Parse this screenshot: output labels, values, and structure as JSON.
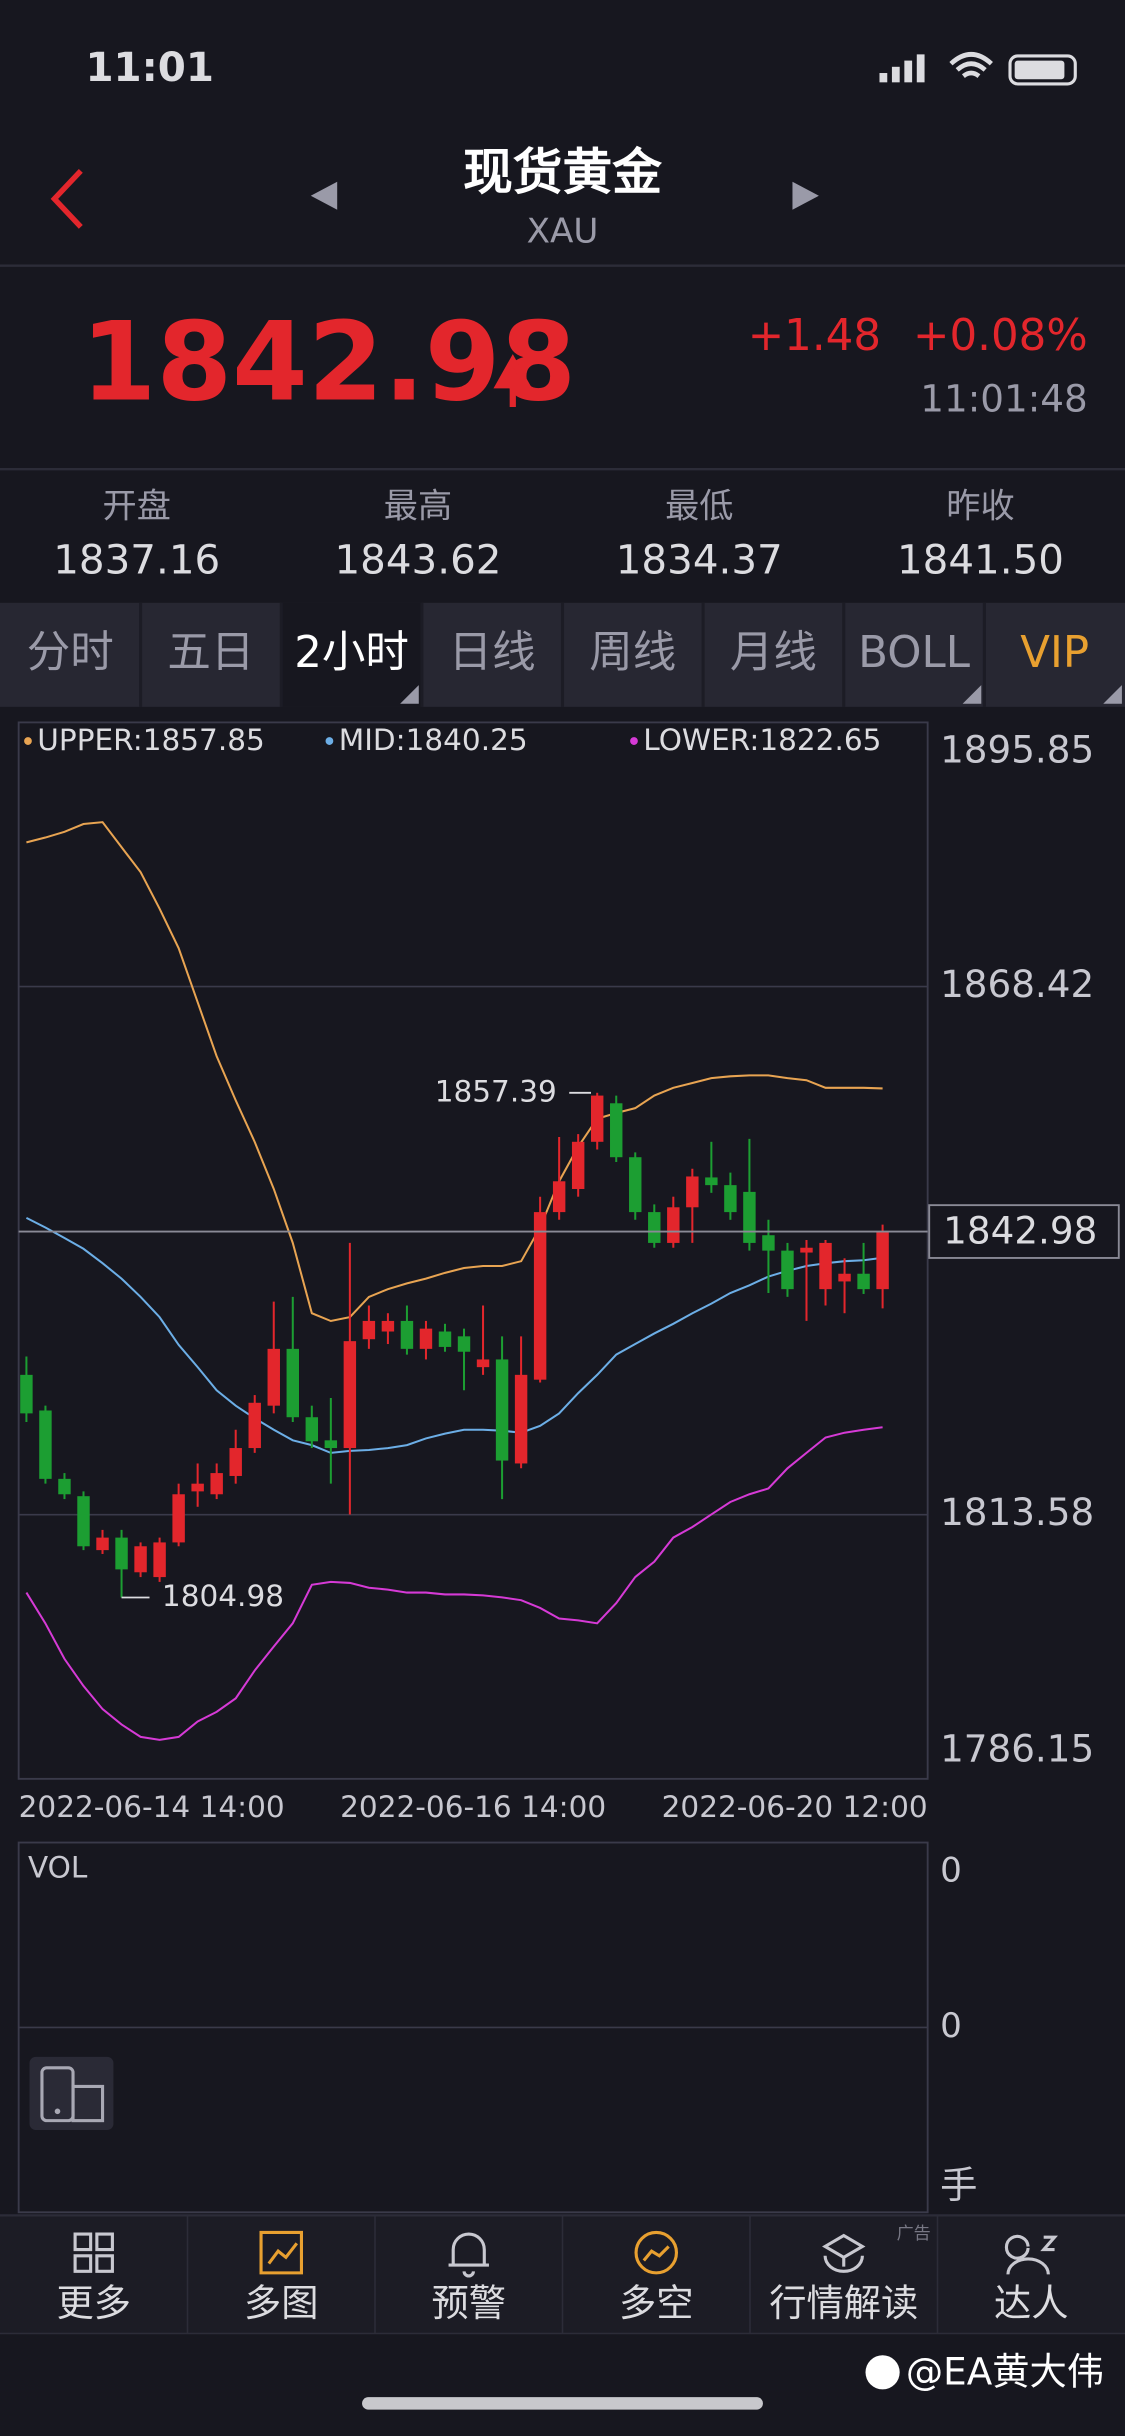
{
  "status_bar": {
    "time": "11:01"
  },
  "header": {
    "title": "现货黄金",
    "subtitle": "XAU"
  },
  "quote": {
    "price": "1842.98",
    "change": "+1.48",
    "change_pct": "+0.08%",
    "time": "11:01:48"
  },
  "stats": [
    {
      "label": "开盘",
      "value": "1837.16"
    },
    {
      "label": "最高",
      "value": "1843.62"
    },
    {
      "label": "最低",
      "value": "1834.37"
    },
    {
      "label": "昨收",
      "value": "1841.50"
    }
  ],
  "tabs": [
    "分时",
    "五日",
    "2小时",
    "日线",
    "周线",
    "月线",
    "BOLL",
    "VIP"
  ],
  "active_tab": 2,
  "chart": {
    "type": "candlestick",
    "ylim": [
      1786.15,
      1895.85
    ],
    "yticks": [
      1895.85,
      1868.42,
      1813.58,
      1786.15
    ],
    "up_color": "#e3262c",
    "down_color": "#1c9e32",
    "x_labels": [
      "2022-06-14 14:00",
      "2022-06-16 14:00",
      "2022-06-20 12:00"
    ],
    "candles": [
      {
        "o": 1828.1,
        "h": 1830.0,
        "l": 1823.2,
        "c": 1824.1
      },
      {
        "o": 1824.4,
        "h": 1824.9,
        "l": 1816.8,
        "c": 1817.3
      },
      {
        "o": 1817.3,
        "h": 1817.9,
        "l": 1815.2,
        "c": 1815.7
      },
      {
        "o": 1815.5,
        "h": 1816.0,
        "l": 1809.9,
        "c": 1810.3
      },
      {
        "o": 1809.9,
        "h": 1812.0,
        "l": 1809.5,
        "c": 1811.2
      },
      {
        "o": 1811.2,
        "h": 1812.0,
        "l": 1804.98,
        "c": 1807.9
      },
      {
        "o": 1807.6,
        "h": 1810.7,
        "l": 1807.1,
        "c": 1810.3
      },
      {
        "o": 1807.1,
        "h": 1811.2,
        "l": 1806.6,
        "c": 1810.7
      },
      {
        "o": 1810.7,
        "h": 1816.8,
        "l": 1810.3,
        "c": 1815.7
      },
      {
        "o": 1816.0,
        "h": 1818.9,
        "l": 1814.4,
        "c": 1816.8
      },
      {
        "o": 1815.7,
        "h": 1818.9,
        "l": 1815.2,
        "c": 1817.9
      },
      {
        "o": 1817.6,
        "h": 1822.4,
        "l": 1816.8,
        "c": 1820.5
      },
      {
        "o": 1820.5,
        "h": 1826.0,
        "l": 1820.0,
        "c": 1825.2
      },
      {
        "o": 1824.9,
        "h": 1835.7,
        "l": 1824.1,
        "c": 1830.8
      },
      {
        "o": 1830.8,
        "h": 1836.2,
        "l": 1823.2,
        "c": 1823.7
      },
      {
        "o": 1823.7,
        "h": 1824.9,
        "l": 1820.5,
        "c": 1821.2
      },
      {
        "o": 1821.3,
        "h": 1825.7,
        "l": 1816.8,
        "c": 1820.5
      },
      {
        "o": 1820.5,
        "h": 1841.8,
        "l": 1813.6,
        "c": 1831.6
      },
      {
        "o": 1831.8,
        "h": 1835.3,
        "l": 1830.8,
        "c": 1833.7
      },
      {
        "o": 1832.6,
        "h": 1834.5,
        "l": 1831.3,
        "c": 1833.7
      },
      {
        "o": 1833.7,
        "h": 1835.3,
        "l": 1830.2,
        "c": 1830.8
      },
      {
        "o": 1830.8,
        "h": 1833.7,
        "l": 1829.7,
        "c": 1832.9
      },
      {
        "o": 1832.6,
        "h": 1833.4,
        "l": 1830.5,
        "c": 1831.0
      },
      {
        "o": 1832.1,
        "h": 1832.9,
        "l": 1826.5,
        "c": 1830.5
      },
      {
        "o": 1828.9,
        "h": 1835.3,
        "l": 1828.1,
        "c": 1829.7
      },
      {
        "o": 1829.7,
        "h": 1832.1,
        "l": 1815.2,
        "c": 1819.2
      },
      {
        "o": 1818.9,
        "h": 1832.1,
        "l": 1818.4,
        "c": 1828.1
      },
      {
        "o": 1827.6,
        "h": 1846.6,
        "l": 1827.3,
        "c": 1845.0
      },
      {
        "o": 1845.0,
        "h": 1852.8,
        "l": 1844.2,
        "c": 1848.2
      },
      {
        "o": 1847.4,
        "h": 1853.1,
        "l": 1846.6,
        "c": 1852.3
      },
      {
        "o": 1852.3,
        "h": 1857.39,
        "l": 1851.5,
        "c": 1857.1
      },
      {
        "o": 1856.3,
        "h": 1857.1,
        "l": 1850.2,
        "c": 1850.7
      },
      {
        "o": 1850.7,
        "h": 1851.2,
        "l": 1844.2,
        "c": 1845.0
      },
      {
        "o": 1845.0,
        "h": 1845.8,
        "l": 1841.3,
        "c": 1841.8
      },
      {
        "o": 1841.8,
        "h": 1846.6,
        "l": 1841.3,
        "c": 1845.5
      },
      {
        "o": 1845.5,
        "h": 1849.5,
        "l": 1841.8,
        "c": 1848.7
      },
      {
        "o": 1848.6,
        "h": 1852.3,
        "l": 1847.0,
        "c": 1847.8
      },
      {
        "o": 1847.8,
        "h": 1849.1,
        "l": 1844.2,
        "c": 1845.0
      },
      {
        "o": 1847.1,
        "h": 1852.6,
        "l": 1841.0,
        "c": 1841.8
      },
      {
        "o": 1842.6,
        "h": 1844.2,
        "l": 1836.6,
        "c": 1841.0
      },
      {
        "o": 1841.0,
        "h": 1841.8,
        "l": 1836.2,
        "c": 1837.0
      },
      {
        "o": 1840.8,
        "h": 1842.1,
        "l": 1833.7,
        "c": 1841.3
      },
      {
        "o": 1837.0,
        "h": 1842.1,
        "l": 1835.3,
        "c": 1841.8
      },
      {
        "o": 1837.8,
        "h": 1840.2,
        "l": 1834.5,
        "c": 1838.6
      },
      {
        "o": 1838.6,
        "h": 1841.8,
        "l": 1836.5,
        "c": 1837.0
      },
      {
        "o": 1837.0,
        "h": 1843.7,
        "l": 1835.0,
        "c": 1842.98
      }
    ],
    "bands": [
      {
        "name": "UPPER:",
        "color": "#e8a452",
        "values": [
          1883.4,
          1883.9,
          1884.5,
          1885.3,
          1885.5,
          1882.9,
          1880.3,
          1876.5,
          1872.4,
          1866.8,
          1861.2,
          1856.6,
          1852.3,
          1847.4,
          1841.8,
          1834.5,
          1833.7,
          1834.1,
          1836.2,
          1837.0,
          1837.6,
          1838.1,
          1838.7,
          1839.2,
          1839.4,
          1839.4,
          1839.9,
          1843.4,
          1848.2,
          1851.8,
          1854.7,
          1855.3,
          1855.8,
          1857.1,
          1857.9,
          1858.4,
          1858.9,
          1859.1,
          1859.2,
          1859.2,
          1858.9,
          1858.7,
          1857.9,
          1857.9,
          1857.9,
          1857.85
        ]
      },
      {
        "name": "MID:",
        "color": "#6caee6",
        "values": [
          1844.4,
          1843.4,
          1842.3,
          1841.2,
          1839.7,
          1838.1,
          1836.2,
          1834.1,
          1831.2,
          1828.9,
          1826.5,
          1824.9,
          1823.6,
          1822.4,
          1821.3,
          1820.8,
          1820.0,
          1820.2,
          1820.3,
          1820.5,
          1820.8,
          1821.5,
          1822.0,
          1822.4,
          1822.4,
          1822.3,
          1822.1,
          1822.8,
          1824.1,
          1826.2,
          1828.1,
          1830.2,
          1831.3,
          1832.4,
          1833.4,
          1834.5,
          1835.5,
          1836.6,
          1837.4,
          1838.3,
          1838.9,
          1839.4,
          1839.7,
          1839.9,
          1840.0,
          1840.25
        ]
      },
      {
        "name": "LOWER:",
        "color": "#d63ad6",
        "values": [
          1805.5,
          1802.3,
          1798.6,
          1795.8,
          1793.4,
          1791.8,
          1790.5,
          1790.2,
          1790.5,
          1792.1,
          1793.1,
          1794.5,
          1797.4,
          1799.9,
          1802.3,
          1806.3,
          1806.6,
          1806.5,
          1806.0,
          1805.8,
          1805.5,
          1805.5,
          1805.3,
          1805.3,
          1805.2,
          1805.0,
          1804.7,
          1803.9,
          1802.8,
          1802.6,
          1802.3,
          1804.4,
          1807.1,
          1808.7,
          1811.2,
          1812.3,
          1813.6,
          1814.9,
          1815.7,
          1816.3,
          1818.4,
          1820.0,
          1821.6,
          1822.1,
          1822.4,
          1822.65
        ]
      }
    ]
  },
  "volume": {
    "label": "VOL",
    "axis_labels": [
      "0",
      "0"
    ],
    "unit": "手"
  },
  "nav": [
    "更多",
    "多图",
    "预警",
    "多空",
    "行情解读",
    "达人"
  ],
  "ad_tag": "广告",
  "watermark": "@EA黄大伟"
}
